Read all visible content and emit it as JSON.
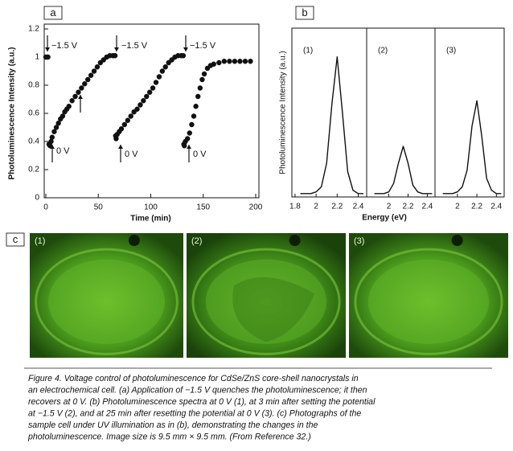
{
  "panel_labels": [
    "a",
    "b",
    "c"
  ],
  "chart_data": [
    {
      "type": "scatter",
      "xlabel": "Time (min)",
      "ylabel": "Photoluminescence Intensity (a.u.)",
      "x": [
        0,
        1,
        2,
        3,
        4,
        5,
        6,
        8,
        10,
        12,
        14,
        16,
        18,
        20,
        22,
        25,
        28,
        31,
        34,
        37,
        40,
        43,
        46,
        49,
        52,
        55,
        58,
        61,
        64,
        66,
        66.5,
        67,
        68,
        70,
        72,
        75,
        78,
        81,
        84,
        87,
        90,
        93,
        96,
        99,
        102,
        105,
        108,
        111,
        114,
        117,
        120,
        123,
        126,
        129,
        131,
        131.5,
        132,
        133,
        135,
        137,
        139,
        141,
        143,
        145,
        147,
        149,
        151,
        154,
        157,
        160,
        165,
        170,
        175,
        180,
        185,
        190,
        195
      ],
      "values": [
        1,
        1,
        1,
        0.38,
        0.37,
        0.4,
        0.43,
        0.47,
        0.5,
        0.53,
        0.56,
        0.58,
        0.61,
        0.63,
        0.65,
        0.69,
        0.72,
        0.75,
        0.78,
        0.81,
        0.84,
        0.87,
        0.9,
        0.93,
        0.96,
        0.98,
        1,
        1.01,
        1.01,
        1.01,
        0.44,
        0.42,
        0.45,
        0.47,
        0.49,
        0.52,
        0.55,
        0.58,
        0.61,
        0.63,
        0.66,
        0.69,
        0.72,
        0.75,
        0.78,
        0.82,
        0.86,
        0.9,
        0.93,
        0.96,
        0.98,
        1,
        1.01,
        1.01,
        1.01,
        0.38,
        0.37,
        0.4,
        0.42,
        0.46,
        0.52,
        0.58,
        0.65,
        0.72,
        0.78,
        0.84,
        0.88,
        0.92,
        0.94,
        0.95,
        0.96,
        0.97,
        0.97,
        0.97,
        0.97,
        0.97,
        0.97
      ],
      "color": "#111111",
      "xlim": [
        0,
        200
      ],
      "ylim": [
        0,
        1.2
      ],
      "xticks": [
        0,
        50,
        100,
        150,
        200
      ],
      "yticks": [
        0,
        0.2,
        0.4,
        0.6,
        0.8,
        1,
        1.2
      ],
      "annotations": [
        "−1.5 V",
        "−1.5 V",
        "−1.5 V",
        "0 V",
        "0 V",
        "0 V"
      ]
    },
    {
      "type": "line",
      "xlabel": "Energy (eV)",
      "ylabel": "Photoluminescence Intensity (a.u.)",
      "x": [
        1.85,
        1.9,
        1.95,
        2.0,
        2.05,
        2.1,
        2.15,
        2.2,
        2.25,
        2.3,
        2.35,
        2.4,
        2.45
      ],
      "xlim": [
        1.77,
        2.48
      ],
      "ylim": [
        0,
        1
      ],
      "series": [
        {
          "name": "(1)",
          "color": "#111111",
          "xticks": [
            1.8,
            2,
            2.2,
            2.4
          ],
          "values": [
            0.02,
            0.02,
            0.02,
            0.03,
            0.06,
            0.2,
            0.55,
            0.83,
            0.5,
            0.15,
            0.04,
            0.02,
            0.02
          ]
        },
        {
          "name": "(2)",
          "color": "#111111",
          "xticks": [
            2,
            2.2,
            2.4
          ],
          "values": [
            0.02,
            0.02,
            0.02,
            0.03,
            0.08,
            0.2,
            0.3,
            0.2,
            0.07,
            0.03,
            0.02,
            0.02,
            0.02
          ]
        },
        {
          "name": "(3)",
          "color": "#111111",
          "xticks": [
            2,
            2.2,
            2.4
          ],
          "values": [
            0.02,
            0.02,
            0.02,
            0.03,
            0.06,
            0.16,
            0.42,
            0.57,
            0.36,
            0.11,
            0.04,
            0.02,
            0.02
          ]
        }
      ]
    }
  ],
  "photos": {
    "labels": [
      "(1)",
      "(2)",
      "(3)"
    ]
  },
  "caption": {
    "lines": [
      "Figure 4. Voltage control of photoluminescence for CdSe/ZnS core-shell nanocrystals in",
      "an electrochemical cell. (a) Application of −1.5 V quenches the photoluminescence; it then",
      "recovers at 0 V. (b) Photoluminescence spectra at 0 V (1), at 3 min after setting the potential",
      "at −1.5 V (2), and at 25 min after resetting the potential at 0 V (3). (c) Photographs of the",
      "sample cell under UV illumination as in (b), demonstrating the changes in the",
      "photoluminescence. Image size is 9.5 mm × 9.5 mm. (From Reference 32.)"
    ]
  }
}
